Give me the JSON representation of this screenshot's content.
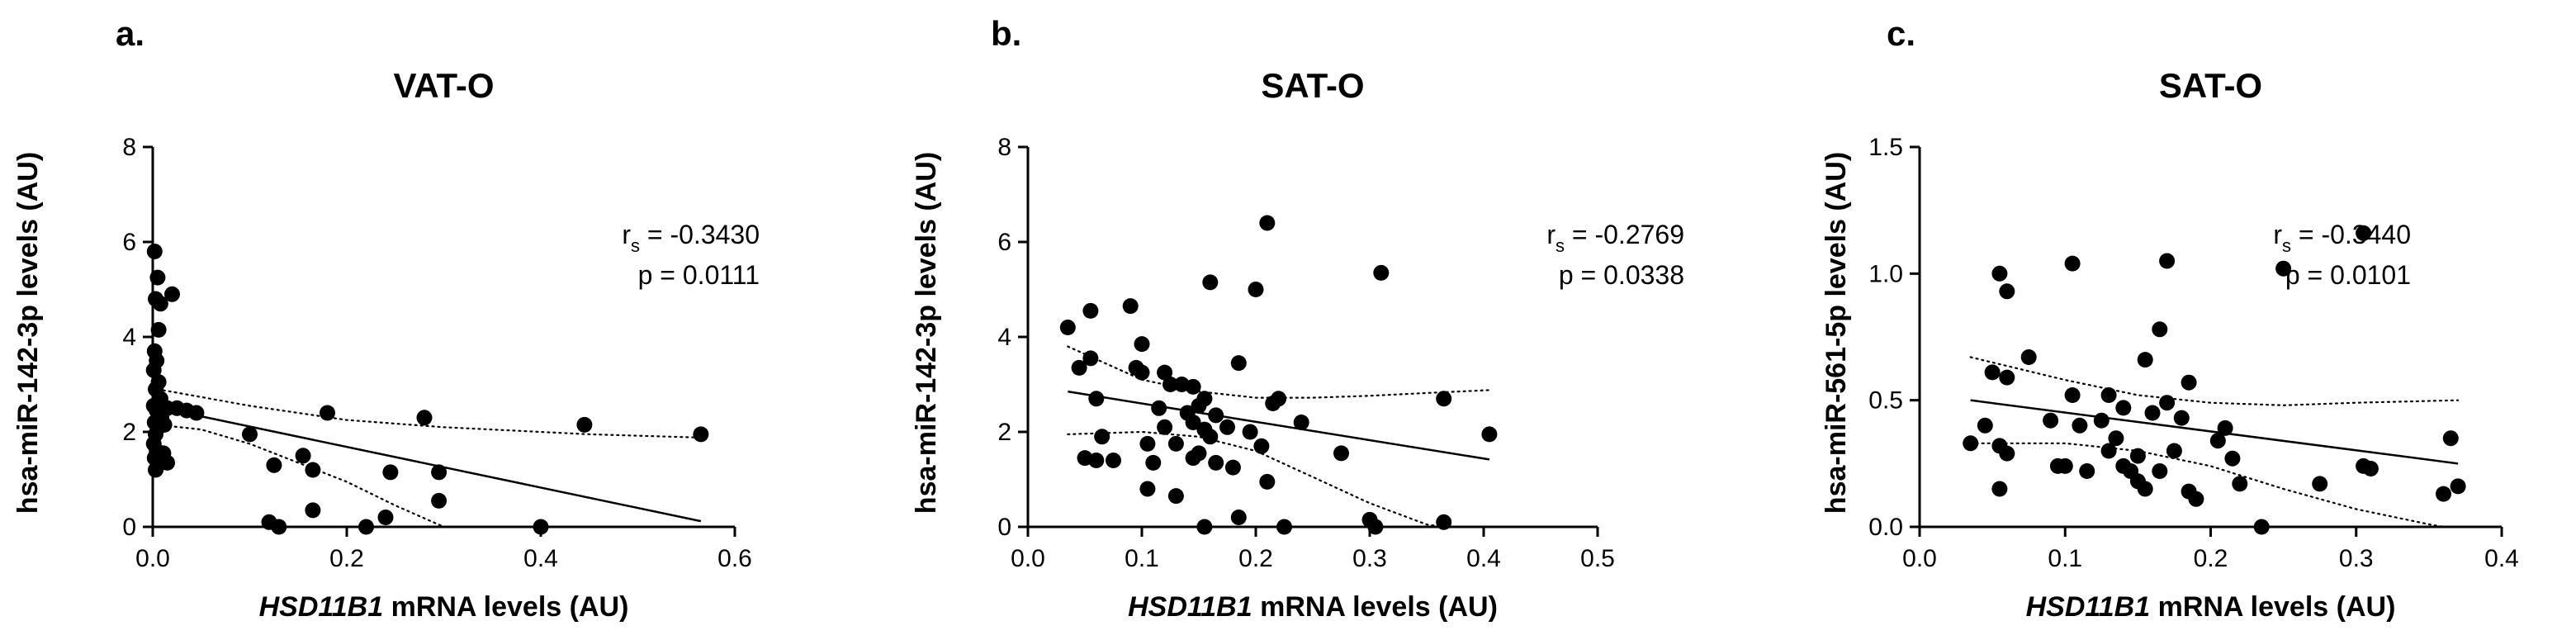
{
  "chart_data": [
    {
      "type": "scatter",
      "panel_label": "a.",
      "title": "VAT-O",
      "xlabel_italic": "HSD11B1",
      "xlabel_rest": " mRNA levels (AU)",
      "ylabel": "hsa-miR-142-3p levels (AU)",
      "xlim": [
        0,
        0.6
      ],
      "ylim": [
        0,
        8
      ],
      "x_ticks": [
        "0.0",
        "0.2",
        "0.4",
        "0.6"
      ],
      "y_ticks": [
        "0",
        "2",
        "4",
        "6",
        "8"
      ],
      "stats": {
        "rs_label": "r",
        "rs_sub": "s",
        "rs_value": " = -0.3430",
        "p_text": "p = 0.0111"
      },
      "fit_line": [
        [
          0.005,
          2.52
        ],
        [
          0.565,
          0.12
        ]
      ],
      "ci_upper": [
        [
          0.005,
          2.9
        ],
        [
          0.1,
          2.55
        ],
        [
          0.2,
          2.25
        ],
        [
          0.3,
          2.1
        ],
        [
          0.45,
          1.95
        ],
        [
          0.565,
          1.88
        ]
      ],
      "ci_lower": [
        [
          0.005,
          2.15
        ],
        [
          0.05,
          2.05
        ],
        [
          0.1,
          1.75
        ],
        [
          0.15,
          1.35
        ],
        [
          0.2,
          0.95
        ],
        [
          0.25,
          0.45
        ],
        [
          0.3,
          0.0
        ]
      ],
      "points": [
        [
          0.002,
          5.8
        ],
        [
          0.005,
          5.25
        ],
        [
          0.02,
          4.9
        ],
        [
          0.003,
          4.8
        ],
        [
          0.008,
          4.7
        ],
        [
          0.006,
          4.15
        ],
        [
          0.002,
          3.7
        ],
        [
          0.004,
          3.5
        ],
        [
          0.001,
          3.3
        ],
        [
          0.006,
          3.05
        ],
        [
          0.003,
          2.9
        ],
        [
          0.008,
          2.7
        ],
        [
          0.001,
          2.55
        ],
        [
          0.004,
          2.45
        ],
        [
          0.015,
          2.5
        ],
        [
          0.025,
          2.5
        ],
        [
          0.035,
          2.45
        ],
        [
          0.045,
          2.4
        ],
        [
          0.009,
          2.3
        ],
        [
          0.002,
          2.2
        ],
        [
          0.006,
          2.1
        ],
        [
          0.012,
          2.15
        ],
        [
          0.003,
          1.95
        ],
        [
          0.001,
          1.75
        ],
        [
          0.004,
          1.6
        ],
        [
          0.011,
          1.55
        ],
        [
          0.002,
          1.45
        ],
        [
          0.005,
          1.3
        ],
        [
          0.003,
          1.2
        ],
        [
          0.015,
          1.35
        ],
        [
          0.1,
          1.95
        ],
        [
          0.125,
          1.3
        ],
        [
          0.155,
          1.5
        ],
        [
          0.165,
          1.2
        ],
        [
          0.18,
          2.4
        ],
        [
          0.245,
          1.15
        ],
        [
          0.28,
          2.3
        ],
        [
          0.295,
          1.15
        ],
        [
          0.295,
          0.55
        ],
        [
          0.445,
          2.15
        ],
        [
          0.565,
          1.95
        ],
        [
          0.12,
          0.1
        ],
        [
          0.13,
          0.0
        ],
        [
          0.165,
          0.35
        ],
        [
          0.22,
          0.0
        ],
        [
          0.24,
          0.2
        ],
        [
          0.4,
          0.0
        ]
      ]
    },
    {
      "type": "scatter",
      "panel_label": "b.",
      "title": "SAT-O",
      "xlabel_italic": "HSD11B1",
      "xlabel_rest": " mRNA levels (AU)",
      "ylabel": "hsa-miR-142-3p levels (AU)",
      "xlim": [
        0,
        0.5
      ],
      "ylim": [
        0,
        8
      ],
      "x_ticks": [
        "0.0",
        "0.1",
        "0.2",
        "0.3",
        "0.4",
        "0.5"
      ],
      "y_ticks": [
        "0",
        "2",
        "4",
        "6",
        "8"
      ],
      "stats": {
        "rs_label": "r",
        "rs_sub": "s",
        "rs_value": " = -0.2769",
        "p_text": "p = 0.0338"
      },
      "fit_line": [
        [
          0.035,
          2.85
        ],
        [
          0.405,
          1.42
        ]
      ],
      "ci_upper": [
        [
          0.035,
          3.8
        ],
        [
          0.1,
          3.1
        ],
        [
          0.15,
          2.85
        ],
        [
          0.2,
          2.72
        ],
        [
          0.25,
          2.72
        ],
        [
          0.3,
          2.76
        ],
        [
          0.35,
          2.82
        ],
        [
          0.405,
          2.88
        ]
      ],
      "ci_lower": [
        [
          0.035,
          1.95
        ],
        [
          0.1,
          2.0
        ],
        [
          0.15,
          1.9
        ],
        [
          0.2,
          1.6
        ],
        [
          0.25,
          1.05
        ],
        [
          0.3,
          0.5
        ],
        [
          0.35,
          0.05
        ],
        [
          0.365,
          0.0
        ]
      ],
      "points": [
        [
          0.035,
          4.2
        ],
        [
          0.055,
          4.55
        ],
        [
          0.045,
          3.35
        ],
        [
          0.055,
          3.55
        ],
        [
          0.09,
          4.65
        ],
        [
          0.095,
          3.35
        ],
        [
          0.1,
          3.85
        ],
        [
          0.1,
          3.25
        ],
        [
          0.12,
          3.25
        ],
        [
          0.125,
          3.0
        ],
        [
          0.135,
          3.0
        ],
        [
          0.145,
          2.95
        ],
        [
          0.155,
          2.7
        ],
        [
          0.15,
          2.55
        ],
        [
          0.115,
          2.5
        ],
        [
          0.06,
          2.7
        ],
        [
          0.065,
          1.9
        ],
        [
          0.05,
          1.45
        ],
        [
          0.06,
          1.4
        ],
        [
          0.075,
          1.4
        ],
        [
          0.105,
          1.75
        ],
        [
          0.11,
          1.35
        ],
        [
          0.12,
          2.1
        ],
        [
          0.13,
          1.75
        ],
        [
          0.14,
          2.4
        ],
        [
          0.145,
          2.2
        ],
        [
          0.155,
          2.05
        ],
        [
          0.16,
          1.9
        ],
        [
          0.165,
          1.35
        ],
        [
          0.175,
          2.1
        ],
        [
          0.18,
          1.25
        ],
        [
          0.185,
          3.45
        ],
        [
          0.195,
          2.0
        ],
        [
          0.2,
          5.0
        ],
        [
          0.205,
          1.7
        ],
        [
          0.21,
          6.4
        ],
        [
          0.215,
          2.6
        ],
        [
          0.22,
          2.7
        ],
        [
          0.21,
          0.95
        ],
        [
          0.105,
          0.8
        ],
        [
          0.13,
          0.65
        ],
        [
          0.15,
          1.55
        ],
        [
          0.155,
          0.0
        ],
        [
          0.16,
          5.15
        ],
        [
          0.185,
          0.2
        ],
        [
          0.225,
          0.0
        ],
        [
          0.24,
          2.2
        ],
        [
          0.275,
          1.55
        ],
        [
          0.3,
          0.15
        ],
        [
          0.305,
          0.0
        ],
        [
          0.31,
          5.35
        ],
        [
          0.365,
          2.7
        ],
        [
          0.365,
          0.1
        ],
        [
          0.405,
          1.95
        ],
        [
          0.145,
          1.45
        ],
        [
          0.165,
          2.35
        ]
      ]
    },
    {
      "type": "scatter",
      "panel_label": "c.",
      "title": "SAT-O",
      "xlabel_italic": "HSD11B1",
      "xlabel_rest": " mRNA levels (AU)",
      "ylabel": "hsa-miR-561-5p levels (AU)",
      "xlim": [
        0,
        0.4
      ],
      "ylim": [
        0,
        1.5
      ],
      "x_ticks": [
        "0.0",
        "0.1",
        "0.2",
        "0.3",
        "0.4"
      ],
      "y_ticks": [
        "0.0",
        "0.5",
        "1.0",
        "1.5"
      ],
      "stats": {
        "rs_label": "r",
        "rs_sub": "s",
        "rs_value": " = -0.3440",
        "p_text": "p = 0.0101"
      },
      "fit_line": [
        [
          0.035,
          0.5
        ],
        [
          0.37,
          0.25
        ]
      ],
      "ci_upper": [
        [
          0.035,
          0.67
        ],
        [
          0.1,
          0.58
        ],
        [
          0.15,
          0.52
        ],
        [
          0.2,
          0.49
        ],
        [
          0.25,
          0.48
        ],
        [
          0.3,
          0.49
        ],
        [
          0.37,
          0.5
        ]
      ],
      "ci_lower": [
        [
          0.035,
          0.33
        ],
        [
          0.1,
          0.33
        ],
        [
          0.15,
          0.3
        ],
        [
          0.2,
          0.24
        ],
        [
          0.25,
          0.15
        ],
        [
          0.3,
          0.07
        ],
        [
          0.35,
          0.01
        ],
        [
          0.36,
          0.0
        ]
      ],
      "points": [
        [
          0.055,
          1.0
        ],
        [
          0.06,
          0.93
        ],
        [
          0.105,
          1.04
        ],
        [
          0.17,
          1.05
        ],
        [
          0.25,
          1.02
        ],
        [
          0.305,
          1.16
        ],
        [
          0.035,
          0.33
        ],
        [
          0.045,
          0.4
        ],
        [
          0.05,
          0.61
        ],
        [
          0.06,
          0.59
        ],
        [
          0.055,
          0.32
        ],
        [
          0.06,
          0.29
        ],
        [
          0.055,
          0.15
        ],
        [
          0.075,
          0.67
        ],
        [
          0.09,
          0.42
        ],
        [
          0.095,
          0.24
        ],
        [
          0.1,
          0.24
        ],
        [
          0.105,
          0.52
        ],
        [
          0.11,
          0.4
        ],
        [
          0.115,
          0.22
        ],
        [
          0.125,
          0.42
        ],
        [
          0.13,
          0.52
        ],
        [
          0.135,
          0.35
        ],
        [
          0.14,
          0.47
        ],
        [
          0.14,
          0.24
        ],
        [
          0.145,
          0.22
        ],
        [
          0.15,
          0.28
        ],
        [
          0.15,
          0.18
        ],
        [
          0.155,
          0.66
        ],
        [
          0.16,
          0.45
        ],
        [
          0.165,
          0.78
        ],
        [
          0.165,
          0.22
        ],
        [
          0.17,
          0.49
        ],
        [
          0.175,
          0.3
        ],
        [
          0.18,
          0.43
        ],
        [
          0.185,
          0.57
        ],
        [
          0.185,
          0.14
        ],
        [
          0.19,
          0.11
        ],
        [
          0.205,
          0.34
        ],
        [
          0.21,
          0.39
        ],
        [
          0.215,
          0.27
        ],
        [
          0.22,
          0.17
        ],
        [
          0.235,
          0.0
        ],
        [
          0.275,
          0.17
        ],
        [
          0.305,
          0.24
        ],
        [
          0.31,
          0.23
        ],
        [
          0.36,
          0.13
        ],
        [
          0.365,
          0.35
        ],
        [
          0.37,
          0.16
        ],
        [
          0.155,
          0.15
        ],
        [
          0.13,
          0.3
        ]
      ]
    }
  ]
}
